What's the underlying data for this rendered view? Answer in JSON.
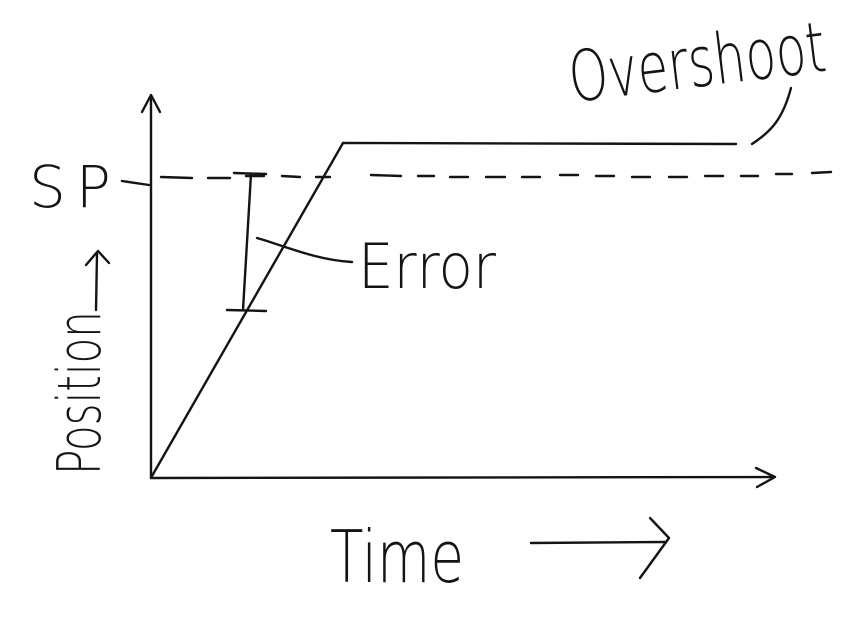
{
  "diagram": {
    "y_axis_label": "Position",
    "x_axis_label": "Time",
    "setpoint_label": "SP",
    "error_label": "Error",
    "overshoot_label": "Overshoot",
    "ink_color": "#141414",
    "background_color": "#ffffff",
    "elements": [
      "y-axis",
      "x-axis",
      "setpoint-dashed-line",
      "response-ramp",
      "response-plateau-above-setpoint",
      "error-bar",
      "overshoot-leader",
      "error-leader"
    ]
  }
}
